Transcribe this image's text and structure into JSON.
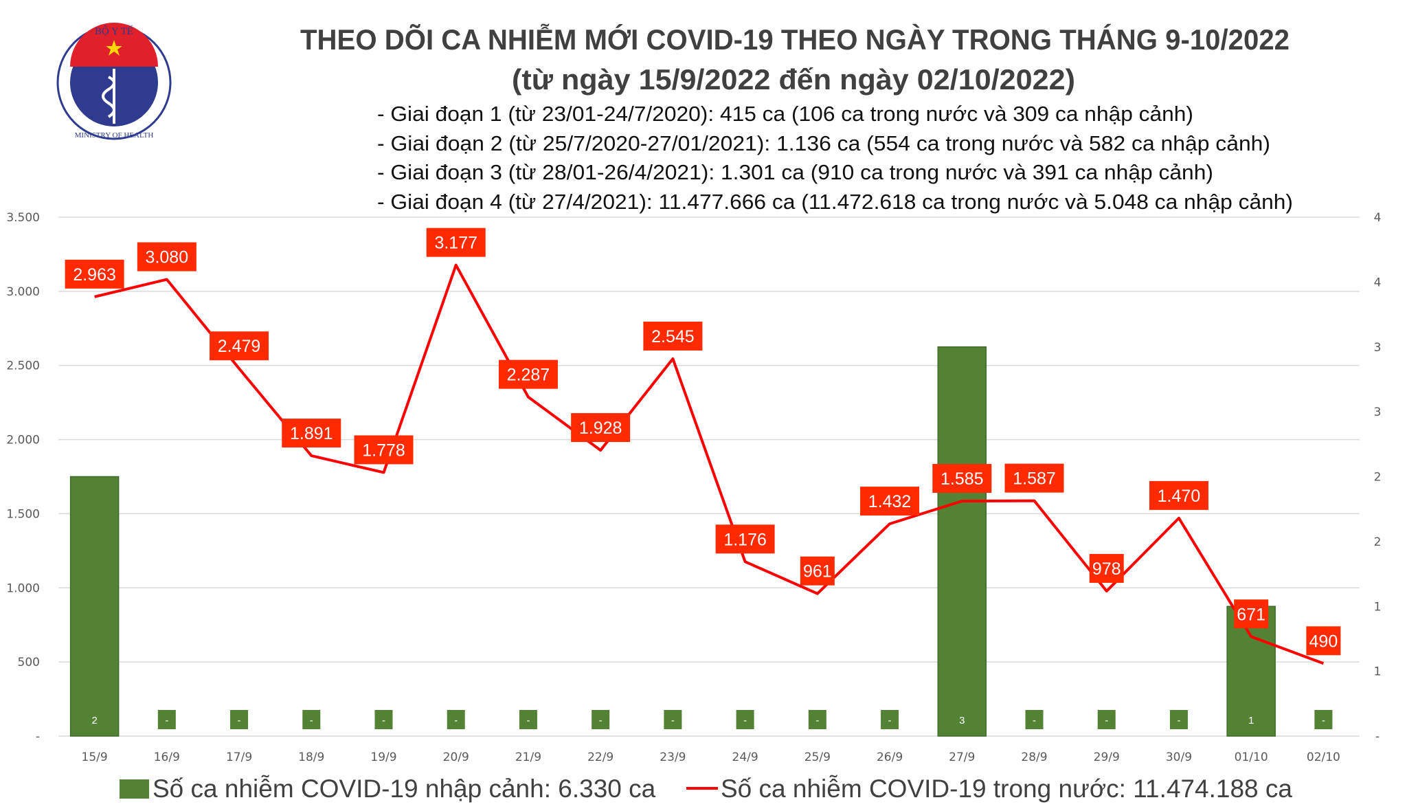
{
  "logo": {
    "top_text": "BỘ Y TẾ",
    "bottom_text": "MINISTRY OF HEALTH"
  },
  "title": "THEO DÕI CA NHIỄM MỚI COVID-19 THEO NGÀY TRONG THÁNG 9-10/2022",
  "subtitle": "(từ ngày 15/9/2022 đến ngày 02/10/2022)",
  "stages": [
    "- Giai đoạn 1 (từ 23/01-24/7/2020): 415 ca (106 ca trong nước và 309 ca nhập cảnh)",
    "- Giai đoạn 2 (từ 25/7/2020-27/01/2021): 1.136 ca (554 ca trong nước và 582 ca nhập cảnh)",
    "- Giai đoạn 3 (từ 28/01-26/4/2021): 1.301 ca (910 ca trong nước và 391 ca nhập cảnh)",
    "- Giai đoạn 4 (từ 27/4/2021): 11.477.666 ca (11.472.618 ca trong nước và 5.048 ca nhập cảnh)"
  ],
  "chart_data": {
    "type": "bar+line",
    "categories": [
      "15/9",
      "16/9",
      "17/9",
      "18/9",
      "19/9",
      "20/9",
      "21/9",
      "22/9",
      "23/9",
      "24/9",
      "25/9",
      "26/9",
      "27/9",
      "28/9",
      "29/9",
      "30/9",
      "01/10",
      "02/10"
    ],
    "series": [
      {
        "name": "Số ca nhiễm COVID-19 nhập cảnh: 6.330 ca",
        "type": "bar",
        "axis": "right",
        "color": "#548235",
        "values": [
          2,
          0,
          0,
          0,
          0,
          0,
          0,
          0,
          0,
          0,
          0,
          0,
          3,
          0,
          0,
          0,
          1,
          0
        ],
        "labels": [
          "2",
          "-",
          "-",
          "-",
          "-",
          "-",
          "-",
          "-",
          "-",
          "-",
          "-",
          "-",
          "3",
          "-",
          "-",
          "-",
          "1",
          "-"
        ]
      },
      {
        "name": "Số ca nhiễm COVID-19 trong nước: 11.474.188 ca",
        "type": "line",
        "axis": "left",
        "color": "#ff0000",
        "values": [
          2963,
          3080,
          2479,
          1891,
          1778,
          3177,
          2287,
          1928,
          2545,
          1176,
          961,
          1432,
          1585,
          1587,
          978,
          1470,
          671,
          490
        ],
        "labels": [
          "2.963",
          "3.080",
          "2.479",
          "1.891",
          "1.778",
          "3.177",
          "2.287",
          "1.928",
          "2.545",
          "1.176",
          "961",
          "1.432",
          "1.585",
          "1.587",
          "978",
          "1.470",
          "671",
          "490"
        ]
      }
    ],
    "y_left": {
      "range": [
        0,
        3500
      ],
      "ticks": [
        "-",
        "500",
        "1.000",
        "1.500",
        "2.000",
        "2.500",
        "3.000",
        "3.500"
      ]
    },
    "y_right": {
      "range": [
        0,
        4
      ],
      "ticks": [
        "-",
        "1",
        "1",
        "2",
        "2",
        "3",
        "3",
        "4",
        "4"
      ]
    },
    "grid": true,
    "legend": "bottom",
    "label_color": "#ff2a00"
  }
}
